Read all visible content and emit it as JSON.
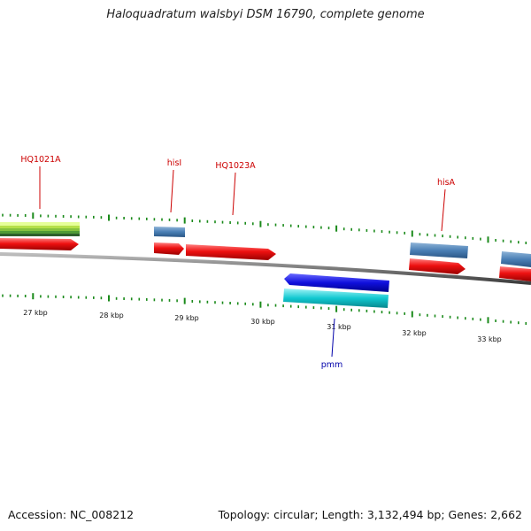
{
  "title": "Haloquadratum walsbyi DSM 16790, complete genome",
  "footer": {
    "accession": "Accession: NC_008212",
    "summary": "Topology: circular; Length: 3,132,494 bp; Genes: 2,662"
  },
  "colors": {
    "backbone": "#7a7a7a",
    "tick": "#1a8a1a",
    "red_gene": "#ee1111",
    "steel_gene": "#4a7fb5",
    "blue_gene": "#1010dd",
    "cyan_gene": "#10c8d0",
    "top_label": "#cc0000",
    "bottom_label": "#0000aa"
  },
  "axis": {
    "tick_labels": [
      "27 kbp",
      "28 kbp",
      "29 kbp",
      "30 kbp",
      "31 kbp",
      "32 kbp",
      "33 kbp"
    ]
  },
  "gene_labels": {
    "top": [
      "HQ1021A",
      "hisI",
      "HQ1023A",
      "hisA"
    ],
    "bottom": [
      "pmm"
    ]
  }
}
